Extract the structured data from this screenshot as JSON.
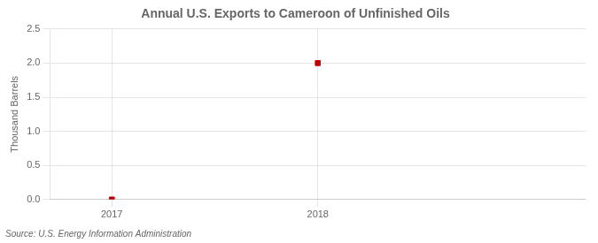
{
  "chart_data": {
    "type": "scatter",
    "title": "Annual U.S. Exports to Cameroon of Unfinished Oils",
    "ylabel": "Thousand Barrels",
    "annotations": [
      "Source: U.S. Energy Information Administration"
    ],
    "x": [
      2017,
      2018
    ],
    "values": [
      0,
      2.0
    ],
    "color": "#c00000",
    "marker": "square",
    "xlim": [
      2016.7,
      2019.3
    ],
    "xticks": [
      2017,
      2018
    ],
    "ylim": [
      0.0,
      2.5
    ],
    "yticks": [
      {
        "value": 0.0,
        "label": "0.0"
      },
      0.5,
      {
        "value": 1.0,
        "label": "1.0"
      },
      1.5,
      {
        "value": 2.0,
        "label": "2.0"
      },
      2.5
    ],
    "grid": true
  }
}
